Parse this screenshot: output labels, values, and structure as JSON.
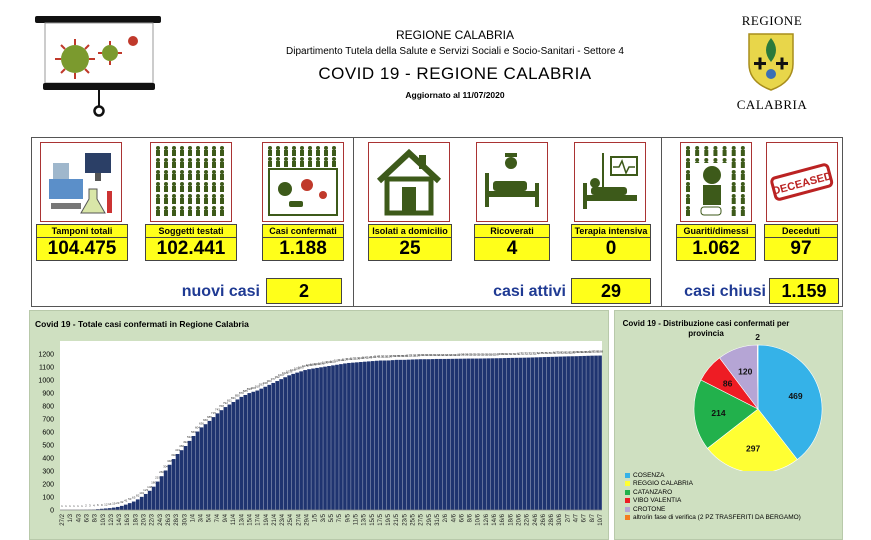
{
  "header": {
    "region": "REGIONE CALABRIA",
    "department": "Dipartimento Tutela della Salute e Servizi Sociali e Socio-Sanitari - Settore 4",
    "title": "COVID 19 - REGIONE CALABRIA",
    "updated": "Aggiornato al  11/07/2020",
    "logo_top": "REGIONE",
    "logo_bottom": "CALABRIA"
  },
  "stats": [
    {
      "label": "Tamponi totali",
      "value": "104.475",
      "icon": "lab-equipment-icon"
    },
    {
      "label": "Soggetti testati",
      "value": "102.441",
      "icon": "people-grid-icon"
    },
    {
      "label": "Casi confermati",
      "value": "1.188",
      "icon": "infected-people-icon"
    },
    {
      "label": "Isolati a domicilio",
      "value": "25",
      "icon": "house-icon"
    },
    {
      "label": "Ricoverati",
      "value": "4",
      "icon": "hospital-bed-icon"
    },
    {
      "label": "Terapia intensiva",
      "value": "0",
      "icon": "icu-bed-icon"
    },
    {
      "label": "Guariti/dimessi",
      "value": "1.062",
      "icon": "recovered-person-icon"
    },
    {
      "label": "Deceduti",
      "value": "97",
      "icon": "deceased-stamp-icon"
    }
  ],
  "summary": {
    "new_label": "nuovi casi",
    "new_value": "2",
    "active_label": "casi attivi",
    "active_value": "29",
    "closed_label": "casi chiusi",
    "closed_value": "1.159"
  },
  "chart_data": [
    {
      "type": "bar",
      "title": "Covid 19 - Totale casi confermati in Regione Calabria",
      "ylim": [
        0,
        1300
      ],
      "yticks": [
        0,
        100,
        200,
        300,
        400,
        500,
        600,
        700,
        800,
        900,
        1000,
        1100,
        1200
      ],
      "grid": false,
      "x_start": "2020-02-27",
      "x_end": "2020-07-11",
      "x_tick_labels": [
        "27/2",
        "1/3",
        "4/3",
        "6/3",
        "8/3",
        "10/3",
        "12/3",
        "14/3",
        "16/3",
        "18/3",
        "20/3",
        "22/3",
        "24/3",
        "26/3",
        "28/3",
        "30/3",
        "1/4",
        "3/4",
        "5/4",
        "7/4",
        "9/4",
        "11/4",
        "13/4",
        "15/4",
        "17/4",
        "19/4",
        "21/4",
        "23/4",
        "25/4",
        "27/4",
        "29/4",
        "1/5",
        "3/5",
        "5/5",
        "7/5",
        "9/5",
        "11/5",
        "13/5",
        "15/5",
        "17/5",
        "19/5",
        "21/5",
        "23/5",
        "25/5",
        "27/5",
        "29/5",
        "31/5",
        "2/6",
        "4/6",
        "6/6",
        "8/6",
        "10/6",
        "12/6",
        "14/6",
        "16/6",
        "18/6",
        "20/6",
        "22/6",
        "24/6",
        "26/6",
        "28/6",
        "30/6",
        "2/7",
        "4/7",
        "6/7",
        "8/7",
        "10/7"
      ],
      "series": [
        {
          "values_at_ticks": [
            1,
            1,
            1,
            2,
            4,
            10,
            15,
            25,
            45,
            70,
            110,
            160,
            240,
            330,
            420,
            480,
            560,
            630,
            680,
            740,
            790,
            830,
            870,
            900,
            920,
            950,
            980,
            1010,
            1040,
            1060,
            1080,
            1090,
            1100,
            1110,
            1120,
            1130,
            1135,
            1140,
            1145,
            1150,
            1150,
            1155,
            1155,
            1158,
            1160,
            1160,
            1162,
            1162,
            1163,
            1164,
            1165,
            1165,
            1166,
            1167,
            1168,
            1170,
            1171,
            1172,
            1174,
            1176,
            1178,
            1180,
            1182,
            1183,
            1185,
            1187,
            1188
          ]
        }
      ]
    },
    {
      "type": "pie",
      "title": "Covid 19 - Distribuzione casi confermati per provincia",
      "labels": [
        "COSENZA",
        "REGGIO CALABRIA",
        "CATANZARO",
        "VIBO VALENTIA",
        "CROTONE",
        "altro/in fase di verifica (2 PZ TRASFERITI DA BERGAMO)"
      ],
      "values": [
        469,
        297,
        214,
        86,
        120,
        2
      ],
      "colors": [
        "#35b2e8",
        "#ffff33",
        "#22b14c",
        "#ee1c24",
        "#b5a5d5",
        "#f47c20"
      ],
      "legend": "bottom-left"
    }
  ]
}
